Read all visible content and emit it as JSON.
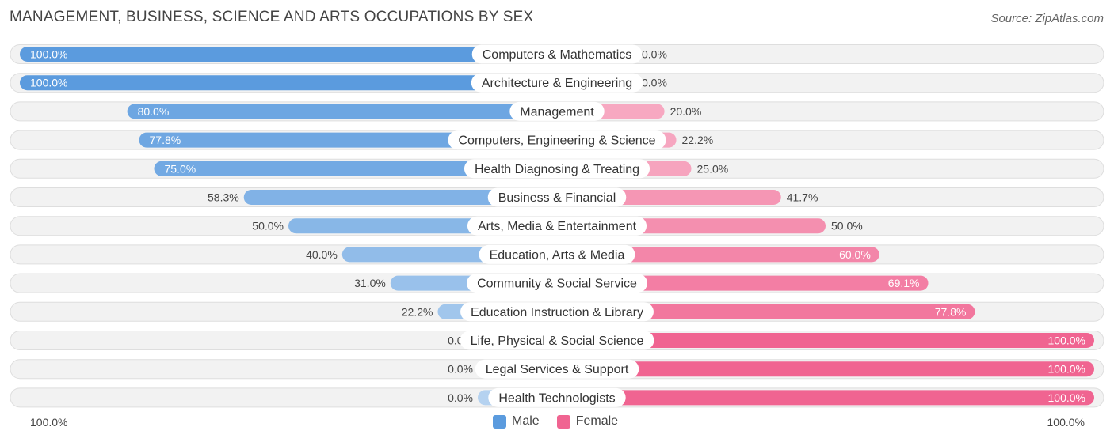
{
  "chart_data": {
    "type": "bar",
    "orientation": "horizontal-diverging",
    "title": "MANAGEMENT, BUSINESS, SCIENCE AND ARTS OCCUPATIONS BY SEX",
    "source": "Source: ZipAtlas.com",
    "categories": [
      "Computers & Mathematics",
      "Architecture & Engineering",
      "Management",
      "Computers, Engineering & Science",
      "Health Diagnosing & Treating",
      "Business & Financial",
      "Arts, Media & Entertainment",
      "Education, Arts & Media",
      "Community & Social Service",
      "Education Instruction & Library",
      "Life, Physical & Social Science",
      "Legal Services & Support",
      "Health Technologists"
    ],
    "series": [
      {
        "name": "Male",
        "color": "#5b9bde",
        "values": [
          100.0,
          100.0,
          80.0,
          77.8,
          75.0,
          58.3,
          50.0,
          40.0,
          31.0,
          22.2,
          0.0,
          0.0,
          0.0
        ],
        "labels": [
          "100.0%",
          "100.0%",
          "80.0%",
          "77.8%",
          "75.0%",
          "58.3%",
          "50.0%",
          "40.0%",
          "31.0%",
          "22.2%",
          "0.0%",
          "0.0%",
          "0.0%"
        ]
      },
      {
        "name": "Female",
        "color": "#f06491",
        "values": [
          0.0,
          0.0,
          20.0,
          22.2,
          25.0,
          41.7,
          50.0,
          60.0,
          69.1,
          77.8,
          100.0,
          100.0,
          100.0
        ],
        "labels": [
          "0.0%",
          "0.0%",
          "20.0%",
          "22.2%",
          "25.0%",
          "41.7%",
          "50.0%",
          "60.0%",
          "69.1%",
          "77.8%",
          "100.0%",
          "100.0%",
          "100.0%"
        ]
      }
    ],
    "xlim": [
      0,
      100
    ],
    "axis_left_label": "100.0%",
    "axis_right_label": "100.0%",
    "legend": {
      "position": "bottom-center",
      "items": [
        "Male",
        "Female"
      ]
    }
  }
}
